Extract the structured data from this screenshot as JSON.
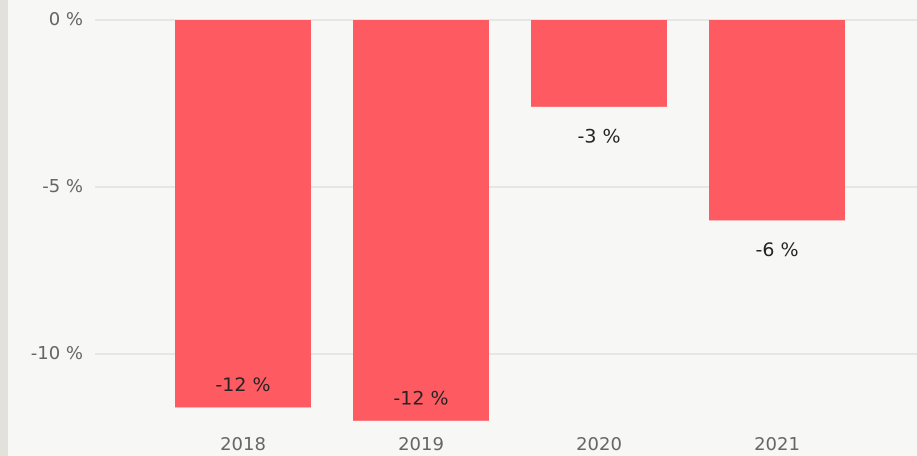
{
  "chart_data": {
    "type": "bar",
    "categories": [
      "2018",
      "2019",
      "2020",
      "2021"
    ],
    "values": [
      -11.6,
      -12.0,
      -2.6,
      -6.0
    ],
    "value_labels": [
      "-12 %",
      "-12 %",
      "-3 %",
      "-6 %"
    ],
    "color": "#fd5a62",
    "ylim": [
      -12.5,
      0
    ],
    "yticks": [
      {
        "value": 0,
        "label": "0 %"
      },
      {
        "value": -5,
        "label": "-5 %"
      },
      {
        "value": -10,
        "label": "-10 %"
      }
    ],
    "grid": true
  }
}
